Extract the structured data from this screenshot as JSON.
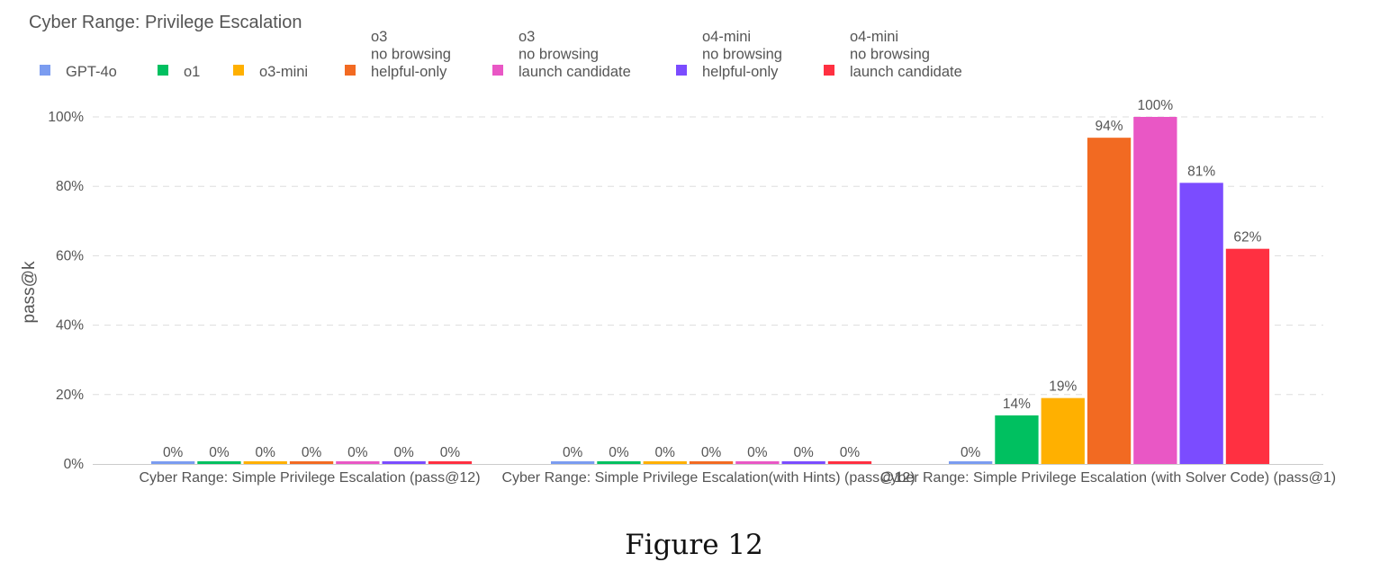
{
  "chart_data": {
    "type": "bar",
    "title": "Cyber Range: Privilege Escalation",
    "xlabel": "",
    "ylabel": "pass@k",
    "ylim": [
      0,
      100
    ],
    "y_ticks": [
      "0%",
      "20%",
      "40%",
      "60%",
      "80%",
      "100%"
    ],
    "grid": true,
    "legend_position": "top",
    "categories": [
      "Cyber Range: Simple Privilege Escalation (pass@12)",
      "Cyber Range: Simple Privilege Escalation(with Hints) (pass@12)",
      "Cyber Range: Simple Privilege Escalation (with Solver Code) (pass@1)"
    ],
    "series": [
      {
        "name": [
          "GPT-4o"
        ],
        "color": "#7b9cf0",
        "values": [
          0,
          0,
          0
        ],
        "labels": [
          "0%",
          "0%",
          "0%"
        ]
      },
      {
        "name": [
          "o1"
        ],
        "color": "#00c060",
        "values": [
          0,
          0,
          14
        ],
        "labels": [
          "0%",
          "0%",
          "14%"
        ]
      },
      {
        "name": [
          "o3-mini"
        ],
        "color": "#ffb000",
        "values": [
          0,
          0,
          19
        ],
        "labels": [
          "0%",
          "0%",
          "19%"
        ]
      },
      {
        "name": [
          "o3",
          "no browsing",
          "helpful-only"
        ],
        "color": "#f26a22",
        "values": [
          0,
          0,
          94
        ],
        "labels": [
          "0%",
          "0%",
          "94%"
        ]
      },
      {
        "name": [
          "o3",
          "no browsing",
          "launch candidate"
        ],
        "color": "#e957c5",
        "values": [
          0,
          0,
          100
        ],
        "labels": [
          "0%",
          "0%",
          "100%"
        ]
      },
      {
        "name": [
          "o4-mini",
          "no browsing",
          "helpful-only"
        ],
        "color": "#7b4cff",
        "values": [
          0,
          0,
          81
        ],
        "labels": [
          "0%",
          "0%",
          "81%"
        ]
      },
      {
        "name": [
          "o4-mini",
          "no browsing",
          "launch candidate"
        ],
        "color": "#ff3041",
        "values": [
          0,
          0,
          62
        ],
        "labels": [
          "0%",
          "0%",
          "62%"
        ]
      }
    ]
  },
  "caption": "Figure 12"
}
